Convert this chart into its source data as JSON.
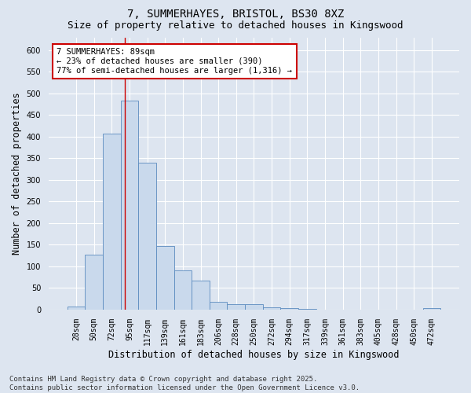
{
  "title_line1": "7, SUMMERHAYES, BRISTOL, BS30 8XZ",
  "title_line2": "Size of property relative to detached houses in Kingswood",
  "xlabel": "Distribution of detached houses by size in Kingswood",
  "ylabel": "Number of detached properties",
  "categories": [
    "28sqm",
    "50sqm",
    "72sqm",
    "95sqm",
    "117sqm",
    "139sqm",
    "161sqm",
    "183sqm",
    "206sqm",
    "228sqm",
    "250sqm",
    "272sqm",
    "294sqm",
    "317sqm",
    "339sqm",
    "361sqm",
    "383sqm",
    "405sqm",
    "428sqm",
    "450sqm",
    "472sqm"
  ],
  "values": [
    8,
    127,
    408,
    483,
    340,
    148,
    90,
    68,
    18,
    13,
    12,
    6,
    4,
    1,
    0,
    0,
    0,
    0,
    0,
    0,
    3
  ],
  "bar_color": "#c9d9ec",
  "bar_edge_color": "#5b8bbf",
  "background_color": "#dde5f0",
  "grid_color": "#ffffff",
  "ylim": [
    0,
    630
  ],
  "yticks": [
    0,
    50,
    100,
    150,
    200,
    250,
    300,
    350,
    400,
    450,
    500,
    550,
    600
  ],
  "annotation_text": "7 SUMMERHAYES: 89sqm\n← 23% of detached houses are smaller (390)\n77% of semi-detached houses are larger (1,316) →",
  "vline_x_idx": 2.72,
  "annotation_box_color": "#ffffff",
  "annotation_box_edge": "#cc0000",
  "vline_color": "#cc0000",
  "footnote": "Contains HM Land Registry data © Crown copyright and database right 2025.\nContains public sector information licensed under the Open Government Licence v3.0.",
  "title_fontsize": 10,
  "subtitle_fontsize": 9,
  "xlabel_fontsize": 8.5,
  "ylabel_fontsize": 8.5,
  "tick_fontsize": 7,
  "annotation_fontsize": 7.5,
  "footnote_fontsize": 6.5
}
